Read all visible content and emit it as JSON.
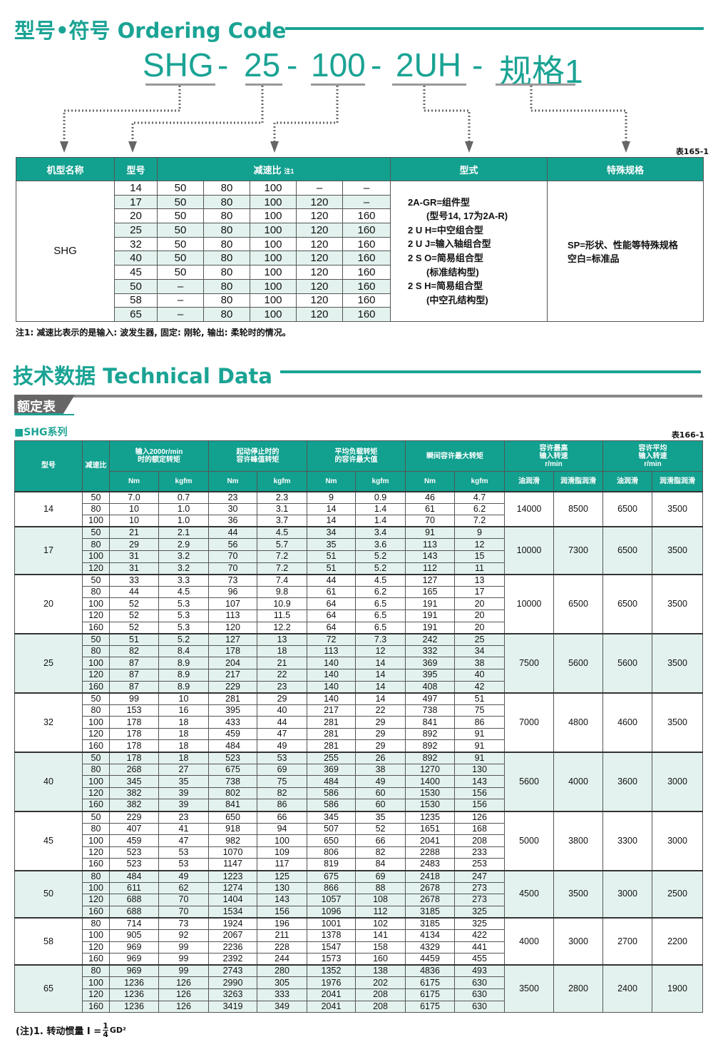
{
  "ordering": {
    "title": "型号•符号 Ordering Code",
    "code_parts": [
      "SHG",
      "25",
      "100",
      "2UH",
      "规格1"
    ],
    "sep": "-",
    "table_no": "表165-1",
    "headers": [
      "机型名称",
      "型号",
      "减速比",
      "注1",
      "型式",
      "特殊规格"
    ],
    "series": "SHG",
    "rows": [
      [
        "14",
        "50",
        "80",
        "100",
        "–",
        "–"
      ],
      [
        "17",
        "50",
        "80",
        "100",
        "120",
        "–"
      ],
      [
        "20",
        "50",
        "80",
        "100",
        "120",
        "160"
      ],
      [
        "25",
        "50",
        "80",
        "100",
        "120",
        "160"
      ],
      [
        "32",
        "50",
        "80",
        "100",
        "120",
        "160"
      ],
      [
        "40",
        "50",
        "80",
        "100",
        "120",
        "160"
      ],
      [
        "45",
        "50",
        "80",
        "100",
        "120",
        "160"
      ],
      [
        "50",
        "–",
        "80",
        "100",
        "120",
        "160"
      ],
      [
        "58",
        "–",
        "80",
        "100",
        "120",
        "160"
      ],
      [
        "65",
        "–",
        "80",
        "100",
        "120",
        "160"
      ]
    ],
    "types": [
      "2A-GR=组件型",
      "　　(型号14, 17为2A-R)",
      "2 U H=中空组合型",
      "2 U J=输入轴组合型",
      "2 S O=简易组合型",
      "　　(标准结构型)",
      "2 S H=简易组合型",
      "　　(中空孔结构型)"
    ],
    "special": [
      "SP=形状、性能等特殊规格",
      "空白=标准品"
    ],
    "note": "注1: 减速比表示的是输入: 波发生器, 固定: 刚轮, 输出: 柔轮时的情况。"
  },
  "technical": {
    "title": "技术数据 Technical Data",
    "tab": "额定表",
    "series_label": "■SHG系列",
    "table_no": "表166-1",
    "headers": {
      "model": "型号",
      "ratio": "减速比",
      "g1": "输入2000r/min\n时的额定转矩",
      "g2": "起动停止时的\n容许峰值转矩",
      "g3": "平均负载转矩\n的容许最大值",
      "g4": "瞬间容许最大转矩",
      "g5": "容许最高\n输入转速\nr/min",
      "g6": "容许平均\n输入转速\nr/min",
      "nm": "Nm",
      "kgfm": "kgfm",
      "oil": "油润滑",
      "grease": "润滑脂润滑"
    },
    "groups": [
      {
        "model": "14",
        "speeds": [
          "14000",
          "8500",
          "6500",
          "3500"
        ],
        "rows": [
          [
            "50",
            "7.0",
            "0.7",
            "23",
            "2.3",
            "9",
            "0.9",
            "46",
            "4.7"
          ],
          [
            "80",
            "10",
            "1.0",
            "30",
            "3.1",
            "14",
            "1.4",
            "61",
            "6.2"
          ],
          [
            "100",
            "10",
            "1.0",
            "36",
            "3.7",
            "14",
            "1.4",
            "70",
            "7.2"
          ]
        ]
      },
      {
        "model": "17",
        "speeds": [
          "10000",
          "7300",
          "6500",
          "3500"
        ],
        "rows": [
          [
            "50",
            "21",
            "2.1",
            "44",
            "4.5",
            "34",
            "3.4",
            "91",
            "9"
          ],
          [
            "80",
            "29",
            "2.9",
            "56",
            "5.7",
            "35",
            "3.6",
            "113",
            "12"
          ],
          [
            "100",
            "31",
            "3.2",
            "70",
            "7.2",
            "51",
            "5.2",
            "143",
            "15"
          ],
          [
            "120",
            "31",
            "3.2",
            "70",
            "7.2",
            "51",
            "5.2",
            "112",
            "11"
          ]
        ]
      },
      {
        "model": "20",
        "speeds": [
          "10000",
          "6500",
          "6500",
          "3500"
        ],
        "rows": [
          [
            "50",
            "33",
            "3.3",
            "73",
            "7.4",
            "44",
            "4.5",
            "127",
            "13"
          ],
          [
            "80",
            "44",
            "4.5",
            "96",
            "9.8",
            "61",
            "6.2",
            "165",
            "17"
          ],
          [
            "100",
            "52",
            "5.3",
            "107",
            "10.9",
            "64",
            "6.5",
            "191",
            "20"
          ],
          [
            "120",
            "52",
            "5.3",
            "113",
            "11.5",
            "64",
            "6.5",
            "191",
            "20"
          ],
          [
            "160",
            "52",
            "5.3",
            "120",
            "12.2",
            "64",
            "6.5",
            "191",
            "20"
          ]
        ]
      },
      {
        "model": "25",
        "speeds": [
          "7500",
          "5600",
          "5600",
          "3500"
        ],
        "rows": [
          [
            "50",
            "51",
            "5.2",
            "127",
            "13",
            "72",
            "7.3",
            "242",
            "25"
          ],
          [
            "80",
            "82",
            "8.4",
            "178",
            "18",
            "113",
            "12",
            "332",
            "34"
          ],
          [
            "100",
            "87",
            "8.9",
            "204",
            "21",
            "140",
            "14",
            "369",
            "38"
          ],
          [
            "120",
            "87",
            "8.9",
            "217",
            "22",
            "140",
            "14",
            "395",
            "40"
          ],
          [
            "160",
            "87",
            "8.9",
            "229",
            "23",
            "140",
            "14",
            "408",
            "42"
          ]
        ]
      },
      {
        "model": "32",
        "speeds": [
          "7000",
          "4800",
          "4600",
          "3500"
        ],
        "rows": [
          [
            "50",
            "99",
            "10",
            "281",
            "29",
            "140",
            "14",
            "497",
            "51"
          ],
          [
            "80",
            "153",
            "16",
            "395",
            "40",
            "217",
            "22",
            "738",
            "75"
          ],
          [
            "100",
            "178",
            "18",
            "433",
            "44",
            "281",
            "29",
            "841",
            "86"
          ],
          [
            "120",
            "178",
            "18",
            "459",
            "47",
            "281",
            "29",
            "892",
            "91"
          ],
          [
            "160",
            "178",
            "18",
            "484",
            "49",
            "281",
            "29",
            "892",
            "91"
          ]
        ]
      },
      {
        "model": "40",
        "speeds": [
          "5600",
          "4000",
          "3600",
          "3000"
        ],
        "rows": [
          [
            "50",
            "178",
            "18",
            "523",
            "53",
            "255",
            "26",
            "892",
            "91"
          ],
          [
            "80",
            "268",
            "27",
            "675",
            "69",
            "369",
            "38",
            "1270",
            "130"
          ],
          [
            "100",
            "345",
            "35",
            "738",
            "75",
            "484",
            "49",
            "1400",
            "143"
          ],
          [
            "120",
            "382",
            "39",
            "802",
            "82",
            "586",
            "60",
            "1530",
            "156"
          ],
          [
            "160",
            "382",
            "39",
            "841",
            "86",
            "586",
            "60",
            "1530",
            "156"
          ]
        ]
      },
      {
        "model": "45",
        "speeds": [
          "5000",
          "3800",
          "3300",
          "3000"
        ],
        "rows": [
          [
            "50",
            "229",
            "23",
            "650",
            "66",
            "345",
            "35",
            "1235",
            "126"
          ],
          [
            "80",
            "407",
            "41",
            "918",
            "94",
            "507",
            "52",
            "1651",
            "168"
          ],
          [
            "100",
            "459",
            "47",
            "982",
            "100",
            "650",
            "66",
            "2041",
            "208"
          ],
          [
            "120",
            "523",
            "53",
            "1070",
            "109",
            "806",
            "82",
            "2288",
            "233"
          ],
          [
            "160",
            "523",
            "53",
            "1147",
            "117",
            "819",
            "84",
            "2483",
            "253"
          ]
        ]
      },
      {
        "model": "50",
        "speeds": [
          "4500",
          "3500",
          "3000",
          "2500"
        ],
        "rows": [
          [
            "80",
            "484",
            "49",
            "1223",
            "125",
            "675",
            "69",
            "2418",
            "247"
          ],
          [
            "100",
            "611",
            "62",
            "1274",
            "130",
            "866",
            "88",
            "2678",
            "273"
          ],
          [
            "120",
            "688",
            "70",
            "1404",
            "143",
            "1057",
            "108",
            "2678",
            "273"
          ],
          [
            "160",
            "688",
            "70",
            "1534",
            "156",
            "1096",
            "112",
            "3185",
            "325"
          ]
        ]
      },
      {
        "model": "58",
        "speeds": [
          "4000",
          "3000",
          "2700",
          "2200"
        ],
        "rows": [
          [
            "80",
            "714",
            "73",
            "1924",
            "196",
            "1001",
            "102",
            "3185",
            "325"
          ],
          [
            "100",
            "905",
            "92",
            "2067",
            "211",
            "1378",
            "141",
            "4134",
            "422"
          ],
          [
            "120",
            "969",
            "99",
            "2236",
            "228",
            "1547",
            "158",
            "4329",
            "441"
          ],
          [
            "160",
            "969",
            "99",
            "2392",
            "244",
            "1573",
            "160",
            "4459",
            "455"
          ]
        ]
      },
      {
        "model": "65",
        "speeds": [
          "3500",
          "2800",
          "2400",
          "1900"
        ],
        "rows": [
          [
            "80",
            "969",
            "99",
            "2743",
            "280",
            "1352",
            "138",
            "4836",
            "493"
          ],
          [
            "100",
            "1236",
            "126",
            "2990",
            "305",
            "1976",
            "202",
            "6175",
            "630"
          ],
          [
            "120",
            "1236",
            "126",
            "3263",
            "333",
            "2041",
            "208",
            "6175",
            "630"
          ],
          [
            "160",
            "1236",
            "126",
            "3419",
            "349",
            "2041",
            "208",
            "6175",
            "630"
          ]
        ]
      }
    ],
    "footnote": {
      "prefix": "(注)1. 转动惯量  I =",
      "num": "1",
      "den": "4",
      "suffix": "GD²"
    }
  },
  "colors": {
    "accent": "#1aa394",
    "header_bg": "#12a08f",
    "shade": "#e3f2ee"
  }
}
